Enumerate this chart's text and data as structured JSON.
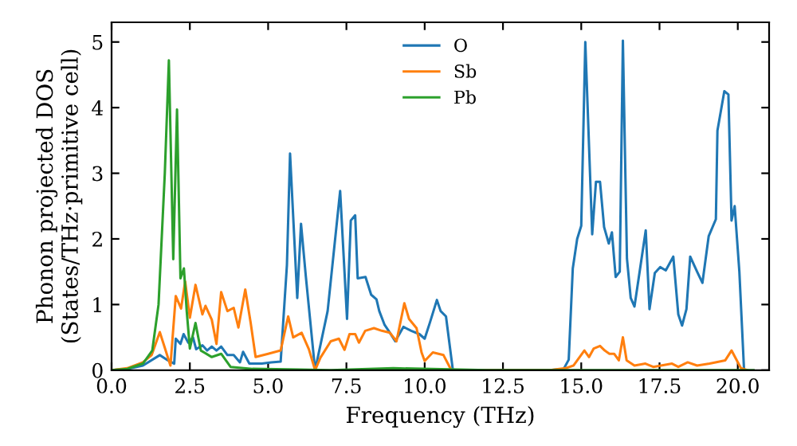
{
  "chart_data": {
    "type": "line",
    "xlabel": "Frequency (THz)",
    "ylabel": "Phonon projected DOS\n(States/THz·primitive cell)",
    "xlim": [
      0,
      21
    ],
    "ylim": [
      0,
      5.3
    ],
    "xticks": [
      {
        "value": 0,
        "label": "0.0"
      },
      {
        "value": 2.5,
        "label": "2.5"
      },
      {
        "value": 5,
        "label": "5.0"
      },
      {
        "value": 7.5,
        "label": "7.5"
      },
      {
        "value": 10,
        "label": "10.0"
      },
      {
        "value": 12.5,
        "label": "12.5"
      },
      {
        "value": 15,
        "label": "15.0"
      },
      {
        "value": 17.5,
        "label": "17.5"
      },
      {
        "value": 20,
        "label": "20.0"
      }
    ],
    "yticks": [
      0,
      1,
      2,
      3,
      4,
      5
    ],
    "grid": false,
    "legend": "top",
    "marker": "none",
    "line_style": "solid",
    "series": [
      {
        "name": "O",
        "color": "#1f77b4",
        "x": [
          0,
          0.5,
          1.0,
          1.54,
          1.8,
          2.0,
          2.05,
          2.2,
          2.3,
          2.45,
          2.6,
          2.7,
          2.9,
          3.05,
          3.2,
          3.35,
          3.5,
          3.7,
          3.9,
          4.1,
          4.2,
          4.4,
          4.8,
          5.1,
          5.4,
          5.6,
          5.7,
          5.93,
          6.05,
          6.2,
          6.5,
          6.9,
          7.3,
          7.52,
          7.64,
          7.78,
          7.86,
          8.11,
          8.29,
          8.46,
          8.55,
          8.72,
          8.89,
          9.06,
          9.32,
          9.57,
          9.83,
          10.0,
          10.17,
          10.39,
          10.51,
          10.68,
          10.9,
          12.0,
          14.0,
          14.44,
          14.6,
          14.73,
          14.87,
          15.0,
          15.13,
          15.35,
          15.47,
          15.6,
          15.73,
          15.88,
          15.98,
          16.1,
          16.23,
          16.33,
          16.46,
          16.58,
          16.7,
          16.84,
          17.06,
          17.18,
          17.35,
          17.52,
          17.7,
          17.94,
          18.1,
          18.22,
          18.36,
          18.48,
          18.7,
          18.87,
          19.07,
          19.3,
          19.35,
          19.57,
          19.7,
          19.8,
          19.9,
          20.05,
          20.2
        ],
        "values": [
          0,
          0.02,
          0.07,
          0.23,
          0.15,
          0.1,
          0.48,
          0.4,
          0.55,
          0.42,
          0.5,
          0.32,
          0.38,
          0.3,
          0.36,
          0.3,
          0.36,
          0.23,
          0.23,
          0.12,
          0.28,
          0.1,
          0.1,
          0.12,
          0.13,
          1.6,
          3.3,
          1.1,
          2.23,
          1.45,
          0,
          0.9,
          2.73,
          0.78,
          2.28,
          2.36,
          1.4,
          1.42,
          1.15,
          1.08,
          0.9,
          0.69,
          0.57,
          0.44,
          0.66,
          0.6,
          0.55,
          0.48,
          0.73,
          1.07,
          0.9,
          0.82,
          0,
          0,
          0,
          0.02,
          0.16,
          1.55,
          2.0,
          2.2,
          5.0,
          2.07,
          2.87,
          2.87,
          2.18,
          1.93,
          2.1,
          1.42,
          1.5,
          5.02,
          1.7,
          1.1,
          0.97,
          1.42,
          2.13,
          0.93,
          1.48,
          1.57,
          1.52,
          1.73,
          0.85,
          0.68,
          0.93,
          1.73,
          1.5,
          1.33,
          2.04,
          2.3,
          3.65,
          4.25,
          4.2,
          2.28,
          2.5,
          1.5,
          0
        ]
      },
      {
        "name": "Sb",
        "color": "#ff7f0e",
        "x": [
          0,
          0.5,
          1.0,
          1.28,
          1.54,
          1.66,
          1.88,
          2.05,
          2.22,
          2.35,
          2.5,
          2.68,
          2.9,
          3.0,
          3.2,
          3.35,
          3.5,
          3.7,
          3.9,
          4.05,
          4.27,
          4.44,
          4.6,
          5.0,
          5.4,
          5.64,
          5.8,
          6.07,
          6.3,
          6.5,
          6.67,
          7.0,
          7.26,
          7.44,
          7.6,
          7.78,
          7.9,
          8.1,
          8.38,
          8.63,
          8.89,
          9.1,
          9.35,
          9.5,
          9.74,
          9.9,
          10.0,
          10.26,
          10.6,
          10.85,
          12.0,
          14.0,
          14.5,
          14.75,
          15.1,
          15.25,
          15.4,
          15.6,
          15.75,
          15.9,
          16.05,
          16.2,
          16.33,
          16.45,
          16.7,
          17.05,
          17.3,
          17.9,
          18.1,
          18.4,
          18.7,
          19.1,
          19.6,
          19.8,
          20.1,
          20.3
        ],
        "values": [
          0,
          0.03,
          0.12,
          0.23,
          0.58,
          0.4,
          0.07,
          1.13,
          0.94,
          1.35,
          0.8,
          1.3,
          0.85,
          0.98,
          0.77,
          0.4,
          1.19,
          0.9,
          0.95,
          0.65,
          1.23,
          0.73,
          0.2,
          0.25,
          0.3,
          0.82,
          0.5,
          0.57,
          0.32,
          0,
          0.19,
          0.44,
          0.48,
          0.31,
          0.55,
          0.55,
          0.42,
          0.6,
          0.64,
          0.6,
          0.57,
          0.44,
          1.02,
          0.78,
          0.64,
          0.27,
          0.14,
          0.27,
          0.23,
          0,
          0,
          0,
          0.03,
          0.07,
          0.3,
          0.2,
          0.33,
          0.37,
          0.3,
          0.25,
          0.25,
          0.15,
          0.5,
          0.15,
          0.07,
          0.1,
          0.05,
          0.1,
          0.05,
          0.12,
          0.07,
          0.1,
          0.15,
          0.3,
          0.03,
          0
        ]
      },
      {
        "name": "Pb",
        "color": "#2ca02c",
        "x": [
          0,
          0.5,
          1.0,
          1.3,
          1.5,
          1.7,
          1.83,
          1.97,
          2.09,
          2.2,
          2.31,
          2.4,
          2.5,
          2.68,
          2.85,
          3.2,
          3.5,
          3.8,
          4.5,
          6.0,
          7.0,
          9.0,
          12.0,
          20.5
        ],
        "values": [
          0,
          0.02,
          0.1,
          0.3,
          1.0,
          3.0,
          4.72,
          1.69,
          3.97,
          1.4,
          1.55,
          0.9,
          0.33,
          0.72,
          0.3,
          0.2,
          0.25,
          0.05,
          0.02,
          0.01,
          0,
          0.03,
          0,
          0
        ]
      }
    ]
  }
}
